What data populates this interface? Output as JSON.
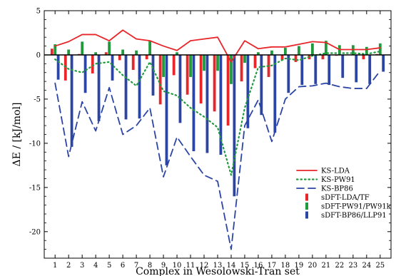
{
  "chart_data": {
    "type": "bar",
    "xlabel": "Complex in Wesolowski-Tran set",
    "ylabel": "ΔE / [kJ/mol]",
    "xlim": [
      0.2,
      25.8
    ],
    "ylim": [
      -23,
      5
    ],
    "yticks": [
      5,
      0,
      -5,
      -10,
      -15,
      -20
    ],
    "categories": [
      "1",
      "2",
      "3",
      "4",
      "5",
      "6",
      "7",
      "8",
      "9",
      "10",
      "11",
      "12",
      "13",
      "14",
      "15",
      "16",
      "17",
      "18",
      "19",
      "20",
      "21",
      "22",
      "23",
      "24",
      "25"
    ],
    "line_series": [
      {
        "name": "KS-LDA",
        "color": "#e8262a",
        "dash": "solid",
        "values": [
          1.0,
          1.5,
          2.3,
          2.3,
          1.6,
          2.8,
          1.8,
          1.6,
          1.0,
          0.5,
          1.6,
          1.8,
          2.0,
          -0.8,
          1.6,
          0.7,
          0.9,
          0.9,
          1.2,
          1.5,
          1.4,
          0.6,
          0.6,
          0.6,
          0.8
        ]
      },
      {
        "name": "KS-PW91",
        "color": "#1f9a3c",
        "dash": "dot",
        "values": [
          -0.5,
          -1.6,
          -2.0,
          -1.0,
          -0.8,
          -2.3,
          -3.5,
          -0.8,
          -4.1,
          -4.6,
          -6.0,
          -7.0,
          -8.2,
          -13.6,
          -6.0,
          -1.4,
          -1.2,
          -0.4,
          -0.6,
          -0.1,
          0.2,
          0.2,
          0.2,
          0.1,
          0.4
        ]
      },
      {
        "name": "KS-BP86",
        "color": "#2b45a5",
        "dash": "dash",
        "values": [
          -3.2,
          -11.5,
          -5.3,
          -8.6,
          -3.7,
          -9.0,
          -8.0,
          -6.0,
          -13.8,
          -9.3,
          -11.5,
          -13.6,
          -14.3,
          -22.0,
          -8.0,
          -5.1,
          -9.8,
          -5.0,
          -3.6,
          -3.5,
          -3.2,
          -3.6,
          -3.8,
          -3.8,
          -1.8
        ]
      }
    ],
    "bar_series": [
      {
        "name": "sDFT-LDA/TF",
        "color": "#e8262a",
        "values": [
          0.7,
          -2.9,
          0.1,
          -2.1,
          0.3,
          -0.6,
          -1.7,
          -0.5,
          -5.6,
          -2.3,
          -4.5,
          -5.5,
          -6.4,
          -8.0,
          -3.0,
          -1.5,
          -2.5,
          -0.6,
          -0.8,
          -0.5,
          -0.5,
          -0.1,
          0.0,
          -0.5,
          0.1
        ]
      },
      {
        "name": "sDFT-PW91/PW91k",
        "color": "#1f9a3c",
        "values": [
          1.2,
          0.6,
          1.5,
          0.3,
          1.5,
          0.6,
          0.5,
          1.6,
          -2.5,
          0.3,
          -2.5,
          -1.8,
          -1.8,
          -3.3,
          -0.9,
          0.3,
          0.5,
          0.8,
          1.0,
          1.3,
          1.6,
          1.1,
          1.1,
          0.9,
          1.3
        ]
      },
      {
        "name": "sDFT-BP86/LLP91",
        "color": "#2b45a5",
        "values": [
          -2.8,
          -10.4,
          -4.3,
          -7.5,
          -2.9,
          -7.3,
          -7.2,
          -4.6,
          -12.5,
          -7.7,
          -10.9,
          -11.1,
          -11.3,
          -16.0,
          -8.3,
          -6.8,
          -8.8,
          -4.3,
          -3.4,
          -3.3,
          -3.4,
          -2.6,
          -3.1,
          -3.3,
          -1.9
        ]
      }
    ],
    "legend": {
      "position": "right-middle"
    },
    "zero_line": true,
    "grid": false
  }
}
